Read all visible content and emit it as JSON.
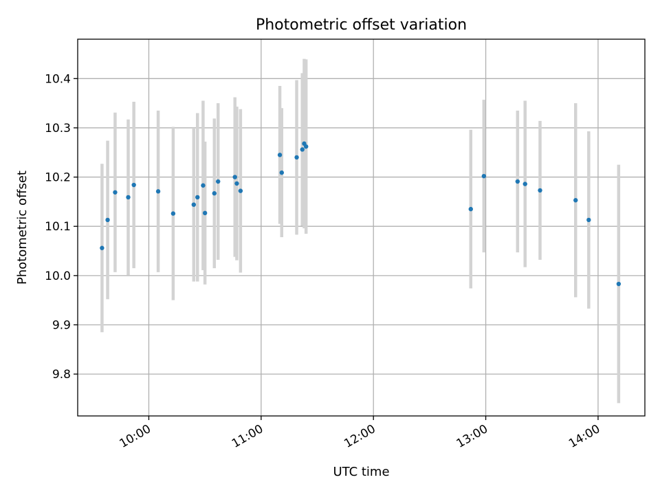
{
  "chart_data": {
    "type": "scatter",
    "title": "Photometric offset variation",
    "xlabel": "UTC time",
    "ylabel": "Photometric offset",
    "xlim": [
      "09:22",
      "14:25"
    ],
    "ylim": [
      9.715,
      10.48
    ],
    "x_ticks": [
      "10:00",
      "11:00",
      "12:00",
      "13:00",
      "14:00"
    ],
    "y_ticks": [
      "9.8",
      "9.9",
      "10.0",
      "10.1",
      "10.2",
      "10.3",
      "10.4"
    ],
    "grid": true,
    "colors": {
      "marker": "#1f77b4",
      "errorbar": "#d3d3d3",
      "grid": "#b0b0b0"
    },
    "points": [
      {
        "x": "09:35",
        "y": 10.056,
        "err": 0.171
      },
      {
        "x": "09:38",
        "y": 10.113,
        "err": 0.161
      },
      {
        "x": "09:42",
        "y": 10.169,
        "err": 0.162
      },
      {
        "x": "09:49",
        "y": 10.159,
        "err": 0.158
      },
      {
        "x": "09:52",
        "y": 10.184,
        "err": 0.169
      },
      {
        "x": "10:05",
        "y": 10.171,
        "err": 0.164
      },
      {
        "x": "10:13",
        "y": 10.126,
        "err": 0.176
      },
      {
        "x": "10:24",
        "y": 10.144,
        "err": 0.156
      },
      {
        "x": "10:26",
        "y": 10.159,
        "err": 0.171
      },
      {
        "x": "10:29",
        "y": 10.183,
        "err": 0.172
      },
      {
        "x": "10:30",
        "y": 10.127,
        "err": 0.145
      },
      {
        "x": "10:35",
        "y": 10.167,
        "err": 0.152
      },
      {
        "x": "10:37",
        "y": 10.191,
        "err": 0.159
      },
      {
        "x": "10:46",
        "y": 10.2,
        "err": 0.162
      },
      {
        "x": "10:47",
        "y": 10.187,
        "err": 0.156
      },
      {
        "x": "10:49",
        "y": 10.172,
        "err": 0.166
      },
      {
        "x": "11:10",
        "y": 10.245,
        "err": 0.14
      },
      {
        "x": "11:11",
        "y": 10.209,
        "err": 0.131
      },
      {
        "x": "11:19",
        "y": 10.24,
        "err": 0.157
      },
      {
        "x": "11:22",
        "y": 10.256,
        "err": 0.155
      },
      {
        "x": "11:23",
        "y": 10.268,
        "err": 0.172
      },
      {
        "x": "11:24",
        "y": 10.262,
        "err": 0.177
      },
      {
        "x": "12:52",
        "y": 10.135,
        "err": 0.161
      },
      {
        "x": "12:59",
        "y": 10.202,
        "err": 0.155
      },
      {
        "x": "13:17",
        "y": 10.191,
        "err": 0.144
      },
      {
        "x": "13:21",
        "y": 10.186,
        "err": 0.169
      },
      {
        "x": "13:29",
        "y": 10.173,
        "err": 0.141
      },
      {
        "x": "13:48",
        "y": 10.153,
        "err": 0.197
      },
      {
        "x": "13:55",
        "y": 10.113,
        "err": 0.18
      },
      {
        "x": "14:11",
        "y": 9.983,
        "err": 0.242
      }
    ]
  }
}
